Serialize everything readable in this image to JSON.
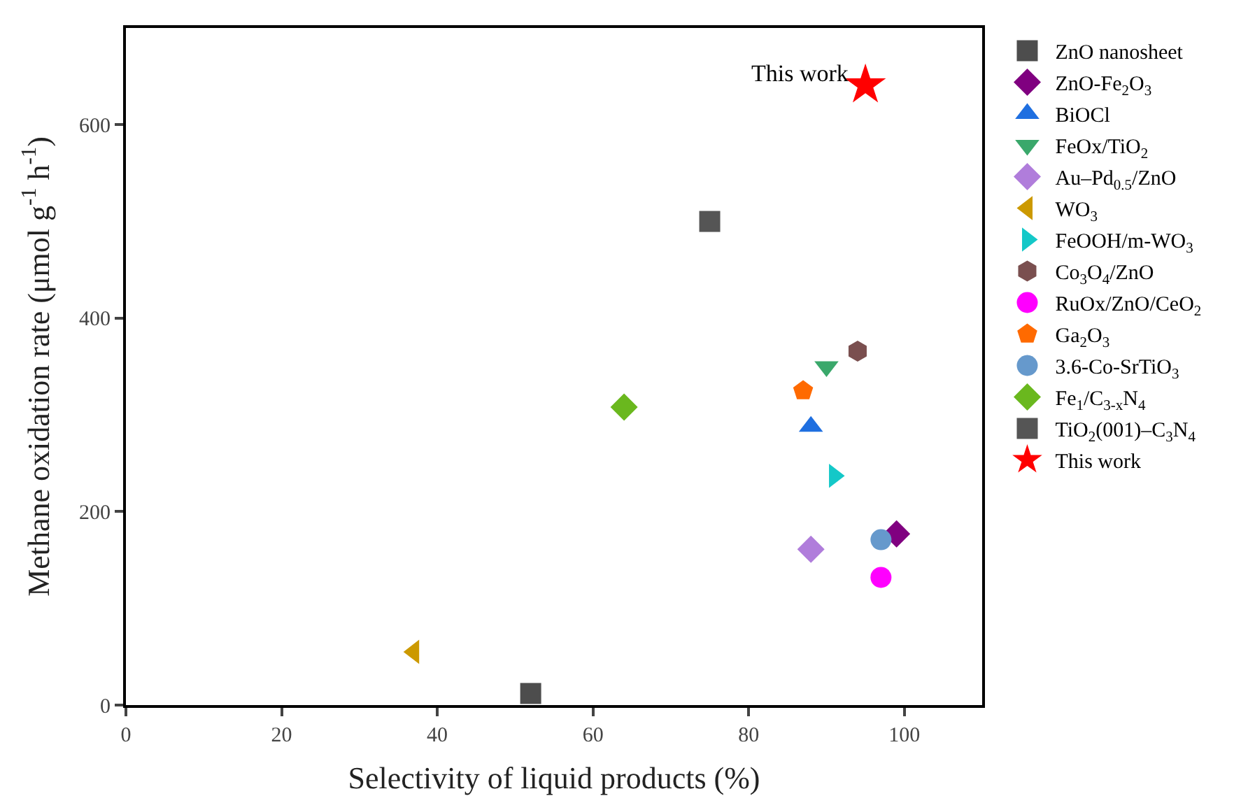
{
  "chart_data": {
    "type": "scatter",
    "xlabel": "Selectivity of liquid products (%)",
    "ylabel": "Methane oxidation rate (μmol g$^{-1}$ h$^{-1}$)",
    "xlim": [
      0,
      110
    ],
    "xticks": [
      0,
      20,
      40,
      60,
      80,
      100
    ],
    "ylim": [
      0,
      700
    ],
    "yticks": [
      0,
      200,
      400,
      600
    ],
    "legend": "right",
    "annotations": [
      {
        "text": "This work",
        "x": 95,
        "y": 641
      }
    ],
    "series": [
      {
        "name": "ZnO nanosheet",
        "color": "#4d4d4d",
        "marker": "square",
        "x": [
          52
        ],
        "values": [
          12
        ]
      },
      {
        "name": "ZnO-Fe$_{2}$O$_{3}$",
        "color": "#800080",
        "marker": "diamond",
        "x": [
          99
        ],
        "values": [
          177
        ]
      },
      {
        "name": "BiOCl",
        "color": "#1f6fe0",
        "marker": "triangle",
        "x": [
          88
        ],
        "values": [
          288
        ]
      },
      {
        "name": "FeOx/TiO$_{2}$",
        "color": "#3aa86b",
        "marker": "triangle-down",
        "x": [
          90
        ],
        "values": [
          350
        ]
      },
      {
        "name": "Au–Pd$_{0.5}$/ZnO",
        "color": "#b07ddb",
        "marker": "diamond",
        "x": [
          88
        ],
        "values": [
          161
        ]
      },
      {
        "name": "WO$_{3}$",
        "color": "#cc9900",
        "marker": "triangle-left",
        "x": [
          37
        ],
        "values": [
          55
        ]
      },
      {
        "name": "FeOOH/m-WO$_{3}$",
        "color": "#14c8c8",
        "marker": "triangle-right",
        "x": [
          91
        ],
        "values": [
          237
        ]
      },
      {
        "name": "Co$_{3}$O$_{4}$/ZnO",
        "color": "#7a4f4f",
        "x": [
          94
        ],
        "values": [
          366
        ]
      },
      {
        "name": "RuOx/ZnO/CeO$_{2}$",
        "color": "#ff00ff",
        "marker": "circle",
        "x": [
          97
        ],
        "values": [
          132
        ]
      },
      {
        "name": "Ga$_{2}$O$_{3}$",
        "color": "#ff6a00",
        "x": [
          87
        ],
        "values": [
          325
        ]
      },
      {
        "name": "3.6-Co-SrTiO$_{3}$",
        "color": "#6699cc",
        "marker": "circle",
        "x": [
          97
        ],
        "values": [
          171
        ]
      },
      {
        "name": "Fe$_{1}$/C$_{3-x}$N$_{4}$",
        "color": "#6ab81e",
        "marker": "diamond",
        "x": [
          64
        ],
        "values": [
          308
        ]
      },
      {
        "name": "TiO$_{2}$(001)–C$_{3}$N$_{4}$",
        "color": "#555555",
        "marker": "square",
        "x": [
          75
        ],
        "values": [
          500
        ]
      },
      {
        "name": "This work",
        "color": "#ff0000",
        "marker": "star",
        "x": [
          95
        ],
        "values": [
          641
        ]
      }
    ]
  }
}
